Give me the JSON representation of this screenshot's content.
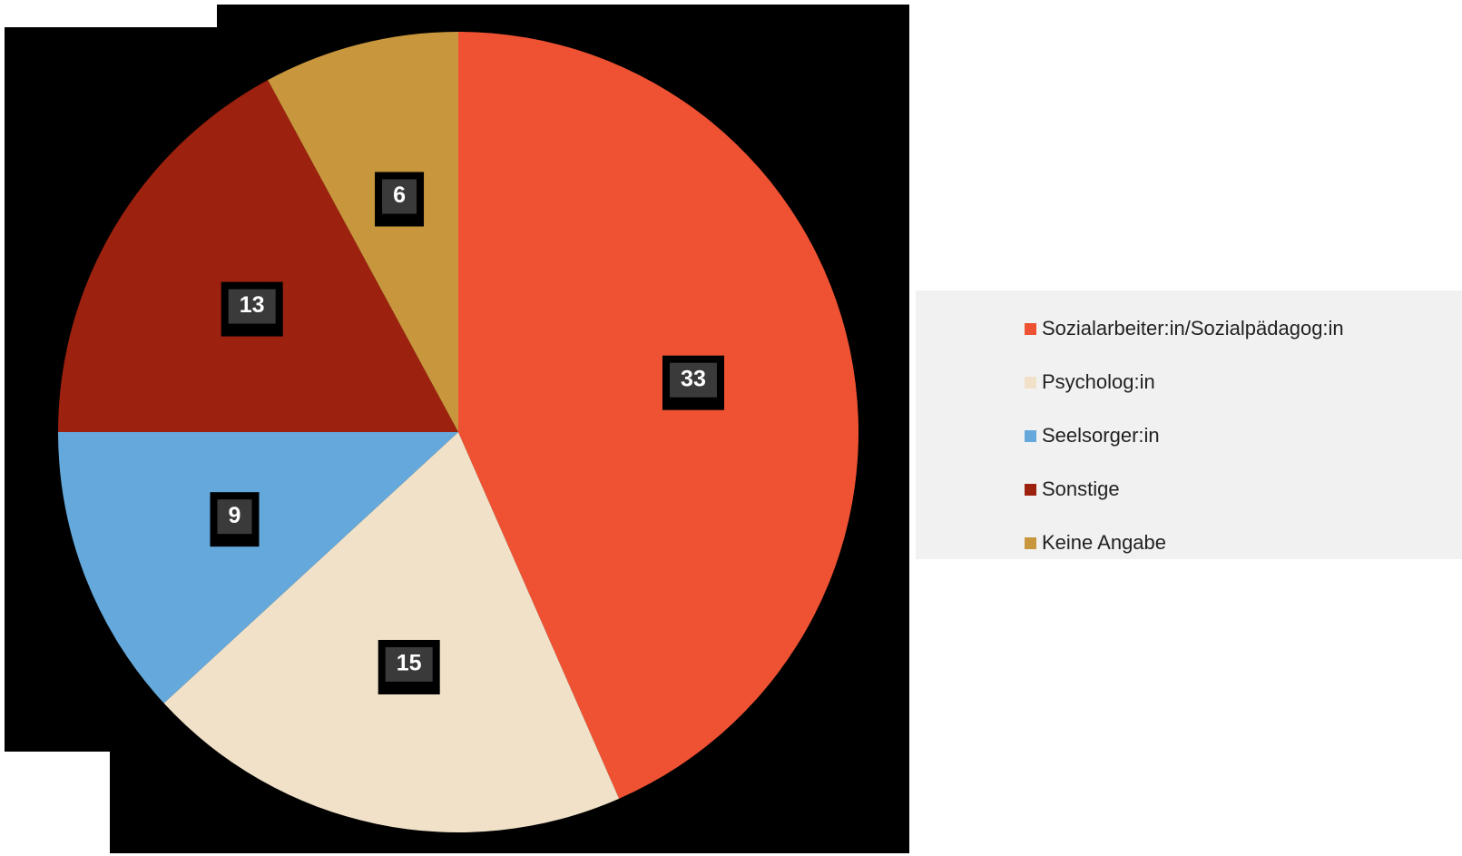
{
  "chart_data": {
    "type": "pie",
    "categories": [
      "Sozialarbeiter:in/Sozialpädagog:in",
      "Psycholog:in",
      "Seelsorger:in",
      "Sonstige",
      "Keine Angabe"
    ],
    "values": [
      33,
      15,
      9,
      13,
      6
    ],
    "colors": [
      "#ee5233",
      "#f0e1c8",
      "#65a9dc",
      "#9c210e",
      "#c8963d"
    ],
    "data_labels": [
      "33",
      "15",
      "9",
      "13",
      "6"
    ],
    "start": "12 o'clock, clockwise",
    "legend_position": "right"
  },
  "legend": {
    "items": [
      {
        "label": "Sozialarbeiter:in/Sozialpädagog:in",
        "color": "#ee5233"
      },
      {
        "label": "Psycholog:in",
        "color": "#f0e1c8"
      },
      {
        "label": "Seelsorger:in",
        "color": "#65a9dc"
      },
      {
        "label": "Sonstige",
        "color": "#9c210e"
      },
      {
        "label": "Keine Angabe",
        "color": "#c8963d"
      }
    ]
  }
}
